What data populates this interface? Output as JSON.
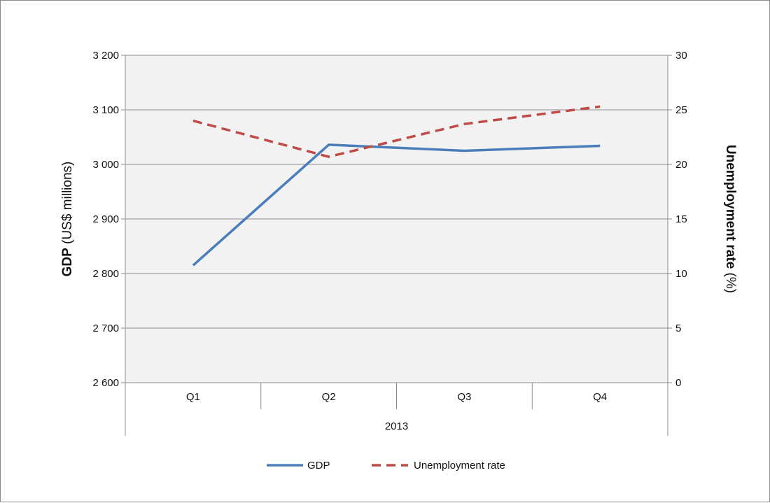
{
  "chart_data": {
    "type": "line",
    "categories": [
      "Q1",
      "Q2",
      "Q3",
      "Q4"
    ],
    "group_label": "2013",
    "series": [
      {
        "name": "GDP",
        "axis": "left",
        "values": [
          2815,
          3036,
          3025,
          3034
        ],
        "color": "#4a7ebb",
        "dash": false
      },
      {
        "name": "Unemployment rate",
        "axis": "right",
        "values": [
          24.0,
          20.7,
          23.7,
          25.3
        ],
        "color": "#be4b48",
        "dash": true
      }
    ],
    "y_left": {
      "label_bold": "GDP",
      "label_rest": " (US$ millions)",
      "lim": [
        2600,
        3200
      ],
      "ticks": [
        2600,
        2700,
        2800,
        2900,
        3000,
        3100,
        3200
      ],
      "tick_labels": [
        "2 600",
        "2 700",
        "2 800",
        "2 900",
        "3 000",
        "3 100",
        "3 200"
      ]
    },
    "y_right": {
      "label_bold": "Unemployment rate",
      "label_rest": " (%)",
      "lim": [
        0,
        30
      ],
      "ticks": [
        0,
        5,
        10,
        15,
        20,
        25,
        30
      ],
      "tick_labels": [
        "0",
        "5",
        "10",
        "15",
        "20",
        "25",
        "30"
      ]
    },
    "grid": true,
    "legend": "bottom",
    "plot_background": "#f2f2f2",
    "gridline_color": "#8c8c8c"
  }
}
